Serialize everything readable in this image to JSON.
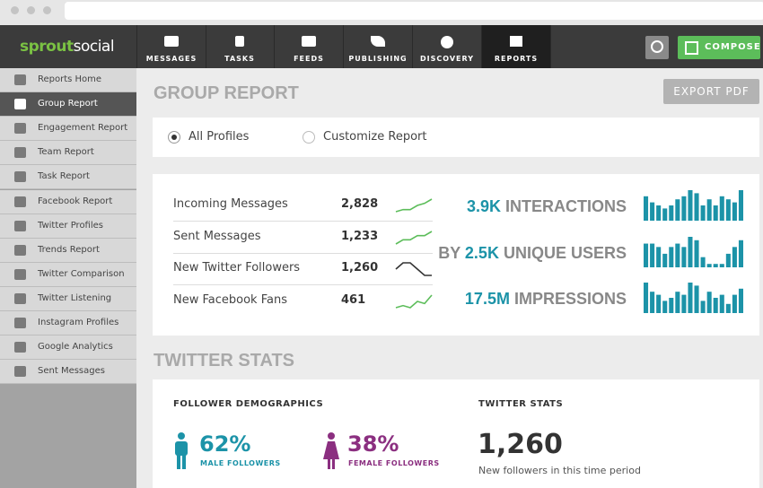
{
  "logo": {
    "first": "sprout",
    "second": "social"
  },
  "nav": [
    "MESSAGES",
    "TASKS",
    "FEEDS",
    "PUBLISHING",
    "DISCOVERY",
    "REPORTS"
  ],
  "compose": "COMPOSE",
  "sidebar": [
    "Reports Home",
    "Group Report",
    "Engagement Report",
    "Team Report",
    "Task Report",
    "Facebook Report",
    "Twitter Profiles",
    "Trends Report",
    "Twitter Comparison",
    "Twitter Listening",
    "Instagram Profiles",
    "Google Analytics",
    "Sent Messages"
  ],
  "page_title": "GROUP REPORT",
  "export_button": "EXPORT PDF",
  "report_options": [
    "All Profiles",
    "Customize Report"
  ],
  "metrics": [
    {
      "label": "Incoming Messages",
      "value": "2,828",
      "trend": [
        2,
        3,
        3,
        5,
        6,
        8
      ]
    },
    {
      "label": "Sent Messages",
      "value": "1,233",
      "trend": [
        2,
        4,
        4,
        6,
        6,
        8
      ]
    },
    {
      "label": "New Twitter Followers",
      "value": "1,260",
      "trend": [
        5,
        6,
        6,
        5,
        4,
        4
      ]
    },
    {
      "label": "New Facebook Fans",
      "value": "461",
      "trend": [
        2,
        3,
        2,
        5,
        4,
        8
      ]
    }
  ],
  "highlights": [
    {
      "value": "3.9K",
      "label": "INTERACTIONS",
      "bars": [
        8,
        6,
        5,
        4,
        5,
        7,
        8,
        10,
        9,
        5,
        7,
        5,
        8,
        7,
        6,
        10
      ]
    },
    {
      "prefix": "BY",
      "value": "2.5K",
      "label": "UNIQUE USERS",
      "bars": [
        7,
        7,
        6,
        4,
        6,
        7,
        6,
        9,
        8,
        3,
        1,
        1,
        1,
        4,
        6,
        8
      ]
    },
    {
      "value": "17.5M",
      "label": "IMPRESSIONS",
      "bars": [
        10,
        7,
        6,
        4,
        5,
        7,
        6,
        10,
        9,
        4,
        7,
        5,
        6,
        3,
        6,
        8
      ]
    }
  ],
  "section_title": "TWITTER STATS",
  "demographics": {
    "title": "FOLLOWER DEMOGRAPHICS",
    "male": {
      "value": "62%",
      "label": "MALE FOLLOWERS"
    },
    "female": {
      "value": "38%",
      "label": "FEMALE FOLLOWERS"
    }
  },
  "twitter_stats": {
    "title": "TWITTER STATS",
    "value": "1,260",
    "caption": "New followers in this time period"
  }
}
